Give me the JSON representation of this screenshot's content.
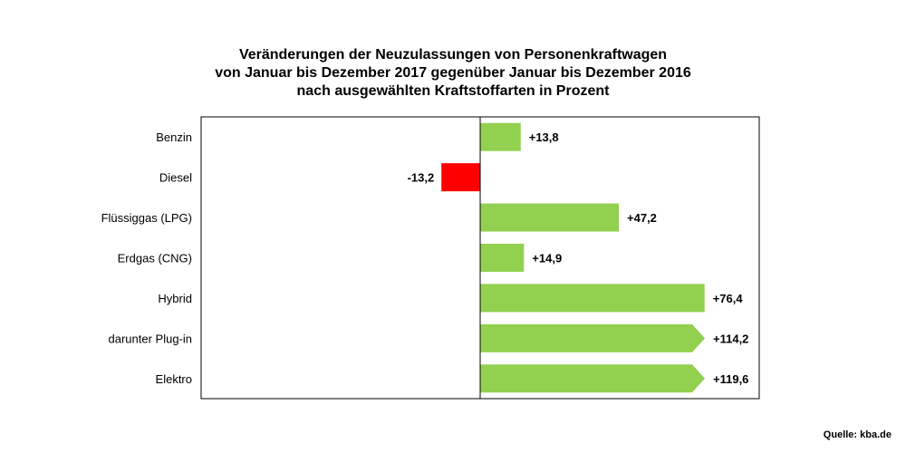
{
  "chart_data": {
    "type": "bar",
    "orientation": "horizontal",
    "title_lines": [
      "Veränderungen der Neuzulassungen von Personenkraftwagen",
      "von Januar bis  Dezember 2017 gegenüber Januar bis Dezember 2016",
      "nach ausgewählten Kraftstoffarten in Prozent"
    ],
    "categories": [
      "Benzin",
      "Diesel",
      "Flüssiggas (LPG)",
      "Erdgas (CNG)",
      "Hybrid",
      "darunter Plug-in",
      "Elektro"
    ],
    "values": [
      13.8,
      -13.2,
      47.2,
      14.9,
      76.4,
      114.2,
      119.6
    ],
    "value_labels": [
      "+13,8",
      "-13,2",
      "+47,2",
      "+14,9",
      "+76,4",
      "+114,2",
      "+119,6"
    ],
    "arrow_tip": [
      false,
      false,
      false,
      false,
      false,
      true,
      true
    ],
    "xlim": [
      -95,
      95
    ],
    "grid": false,
    "colors": {
      "positive": "#92d050",
      "negative": "#ff0000",
      "axis": "#000000"
    }
  },
  "source": "Quelle: kba.de"
}
